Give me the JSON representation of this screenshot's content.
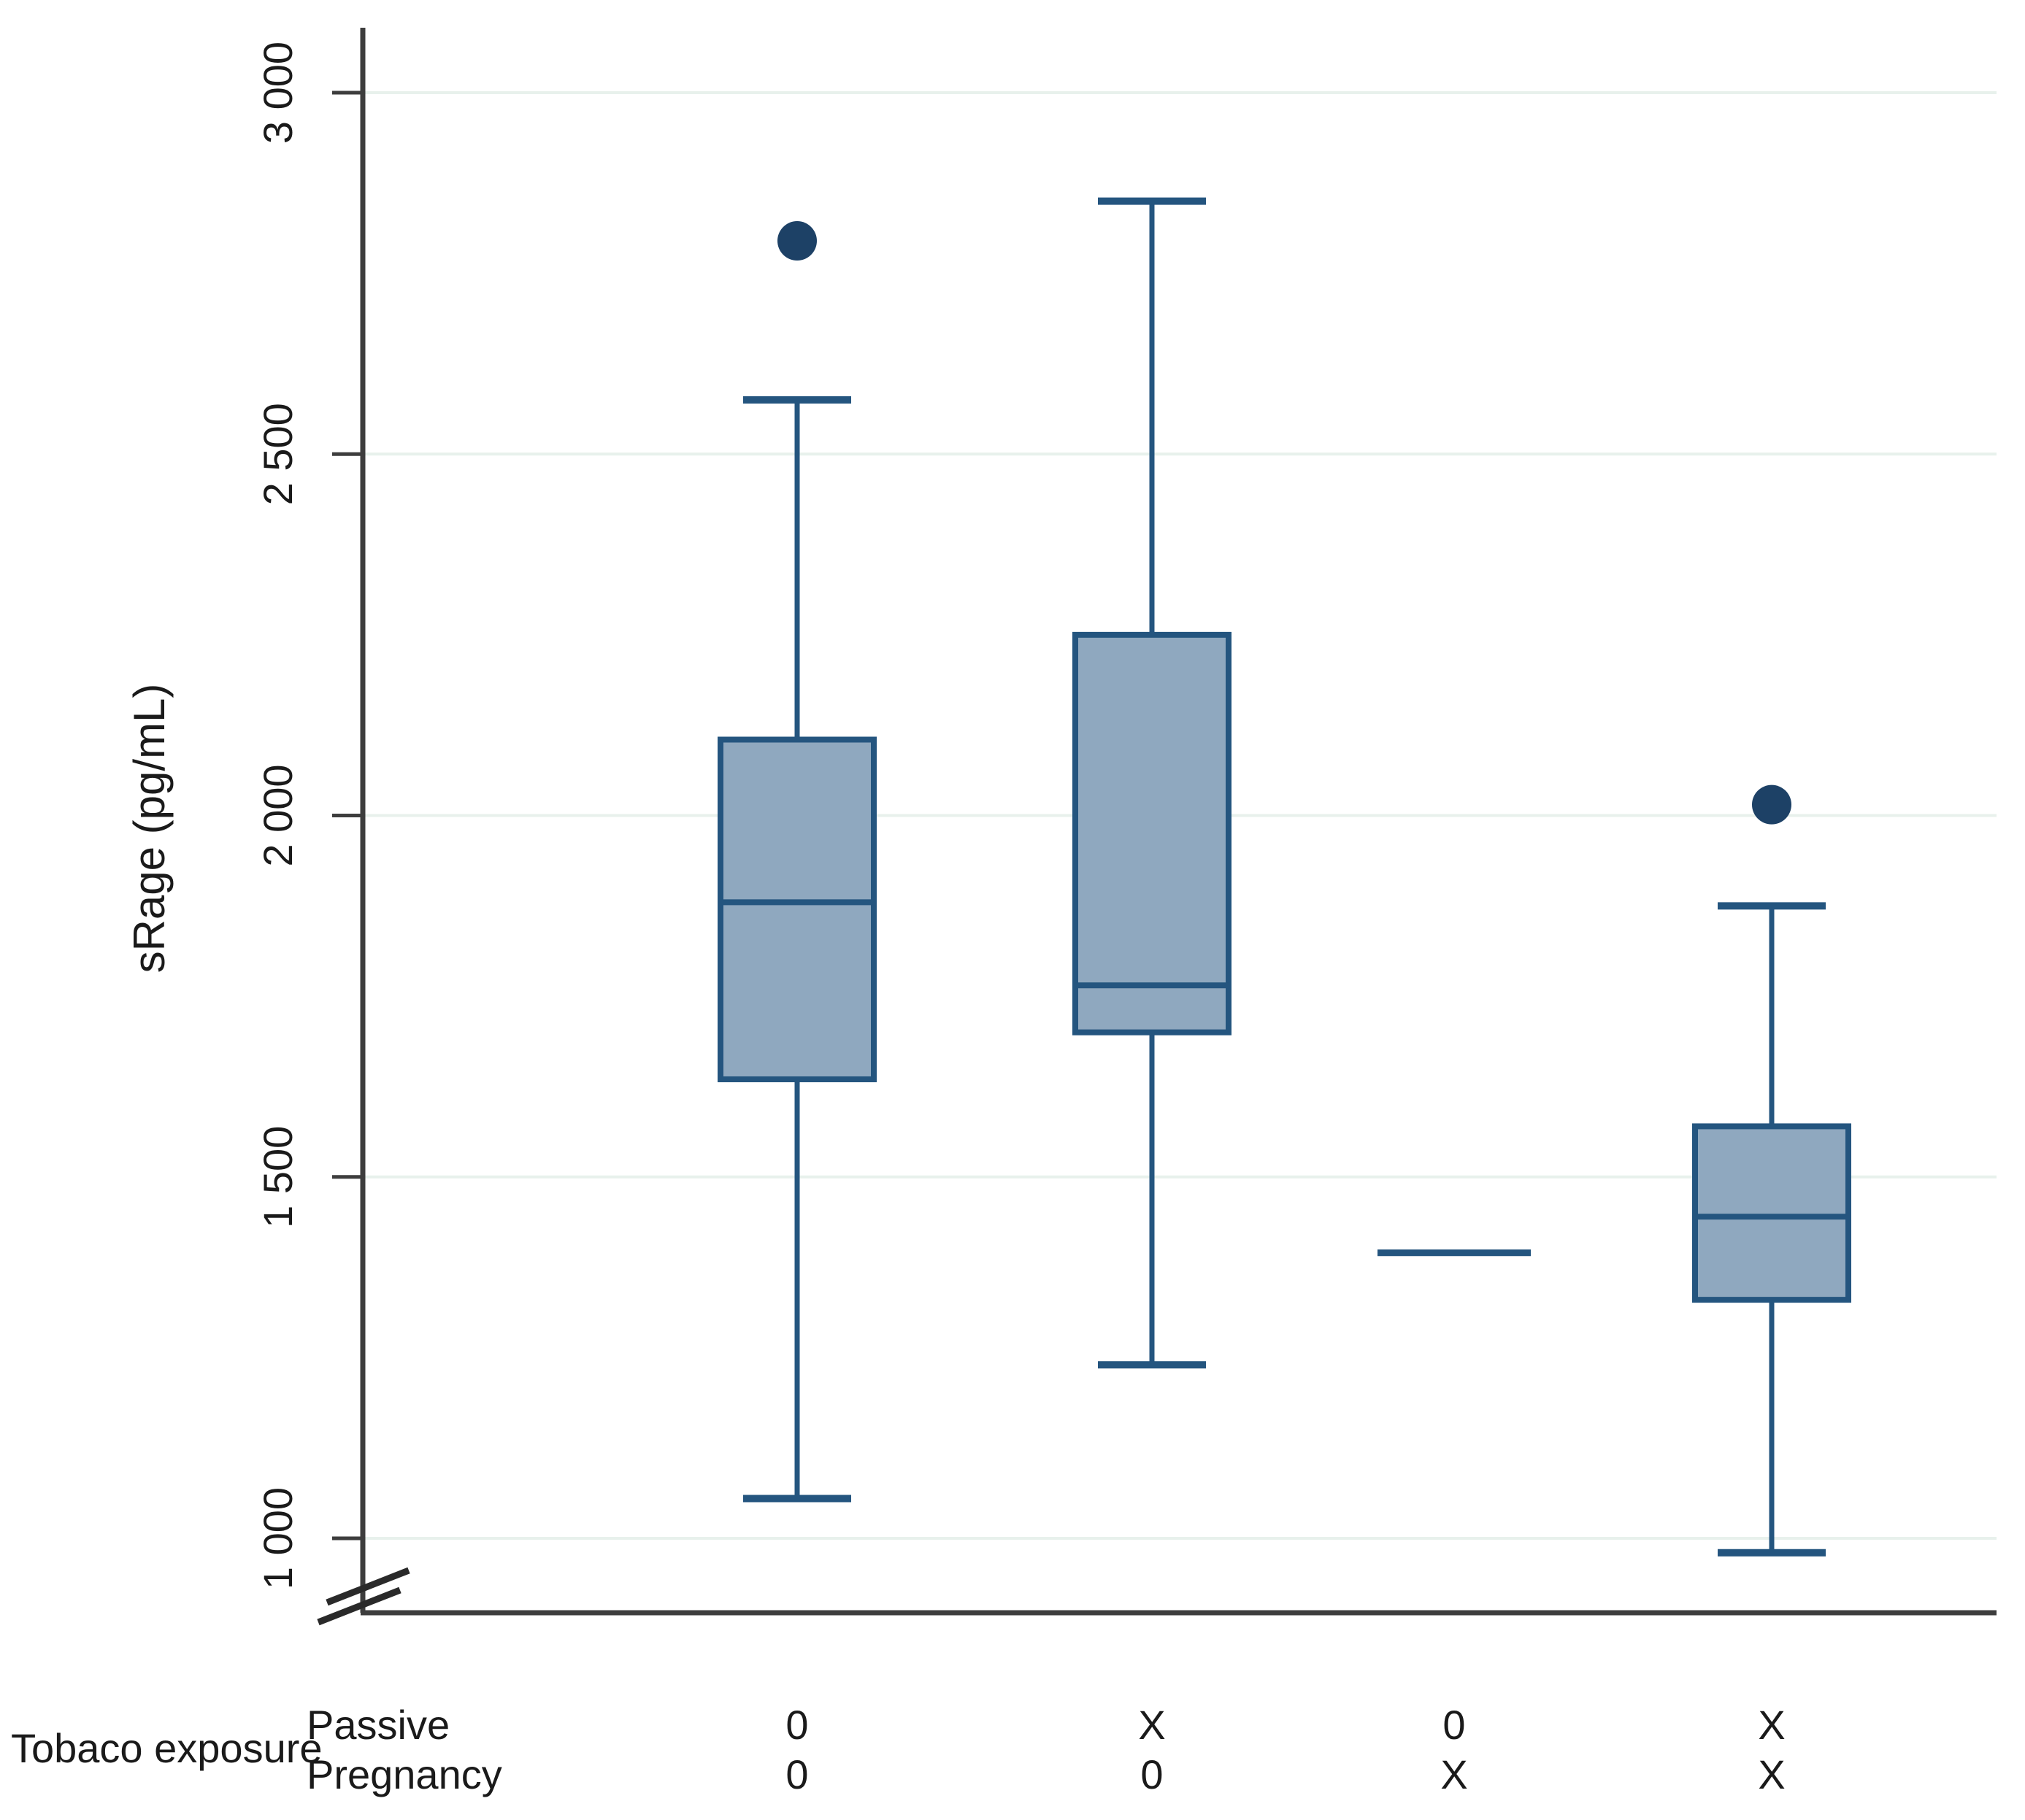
{
  "figure": {
    "background": "#ffffff"
  },
  "chart_data": {
    "type": "boxplot",
    "title": "",
    "ylabel": "sRage (pg/mL)",
    "xlabel": "",
    "grid": true,
    "legend": "none",
    "ylim": [
      1000,
      3000
    ],
    "y_axis_break_below_first_tick": true,
    "y_ticks": [
      {
        "value": 3000,
        "label": "3 000"
      },
      {
        "value": 2500,
        "label": "2 500"
      },
      {
        "value": 2000,
        "label": "2 000"
      },
      {
        "value": 1500,
        "label": "1 500"
      },
      {
        "value": 1000,
        "label": "1 000"
      }
    ],
    "x_axis": {
      "group_label": "Tobaco  exposure",
      "row_labels": [
        "Passive",
        "Pregnancy"
      ],
      "columns": [
        [
          "0",
          "0"
        ],
        [
          "X",
          "0"
        ],
        [
          "0",
          "X"
        ],
        [
          "X",
          "X"
        ]
      ]
    },
    "boxes": [
      {
        "passive": "0",
        "pregnancy": "0",
        "whisker_low": 1055,
        "q1": 1635,
        "median": 1880,
        "q3": 2105,
        "whisker_high": 2575,
        "outliers": [
          2795
        ],
        "single_line": false
      },
      {
        "passive": "X",
        "pregnancy": "0",
        "whisker_low": 1240,
        "q1": 1700,
        "median": 1765,
        "q3": 2250,
        "whisker_high": 2850,
        "outliers": [],
        "single_line": false
      },
      {
        "passive": "0",
        "pregnancy": "X",
        "whisker_low": null,
        "q1": null,
        "median": 1395,
        "q3": null,
        "whisker_high": null,
        "outliers": [],
        "single_line": true
      },
      {
        "passive": "X",
        "pregnancy": "X",
        "whisker_low": 980,
        "q1": 1330,
        "median": 1445,
        "q3": 1570,
        "whisker_high": 1875,
        "outliers": [
          2015
        ],
        "single_line": false
      }
    ],
    "colors": {
      "box_fill": "#8fa8bf",
      "box_border": "#24557f",
      "median_line": "#24557f",
      "whisker": "#24557f",
      "outlier_dot": "#1d4166",
      "gridline": "#e8f1ec",
      "axis_line": "#3d3d3d",
      "text": "#1a1a1a"
    }
  }
}
